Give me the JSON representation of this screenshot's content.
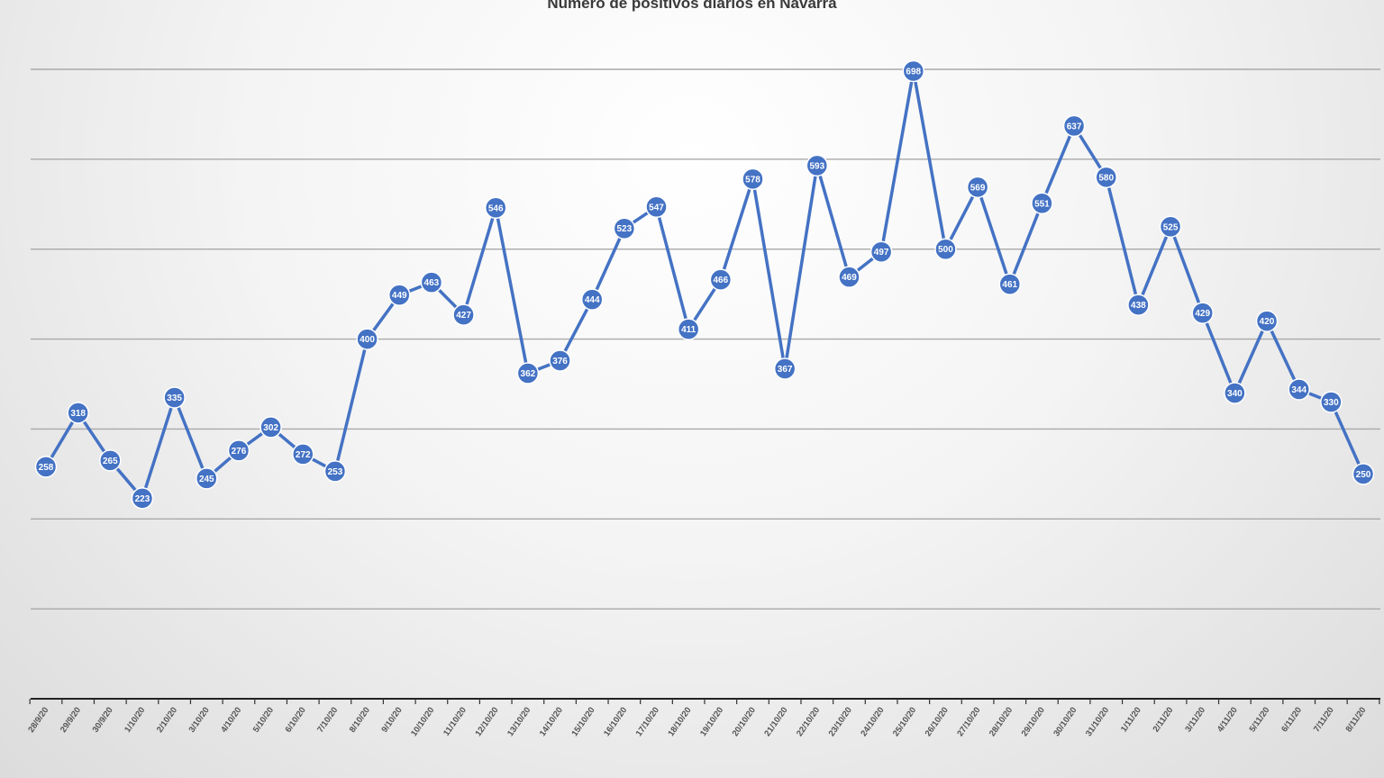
{
  "chart_data": {
    "type": "line",
    "title": "Número de positivos diarios en Navarra",
    "xlabel": "",
    "ylabel": "",
    "ylim": [
      0,
      700
    ],
    "grid": true,
    "legend": "none",
    "series_color": "#4472c4",
    "categories": [
      "28/9/20",
      "29/9/20",
      "30/9/20",
      "1/10/20",
      "2/10/20",
      "3/10/20",
      "4/10/20",
      "5/10/20",
      "6/10/20",
      "7/10/20",
      "8/10/20",
      "9/10/20",
      "10/10/20",
      "11/10/20",
      "12/10/20",
      "13/10/20",
      "14/10/20",
      "15/10/20",
      "16/10/20",
      "17/10/20",
      "18/10/20",
      "19/10/20",
      "20/10/20",
      "21/10/20",
      "22/10/20",
      "23/10/20",
      "24/10/20",
      "25/10/20",
      "26/10/20",
      "27/10/20",
      "28/10/20",
      "29/10/20",
      "30/10/20",
      "31/10/20",
      "1/11/20",
      "2/11/20",
      "3/11/20",
      "4/11/20",
      "5/11/20",
      "6/11/20",
      "7/11/20",
      "8/11/20"
    ],
    "series": [
      {
        "values": [
          258,
          318,
          265,
          223,
          335,
          245,
          276,
          302,
          272,
          253,
          400,
          449,
          463,
          427,
          546,
          362,
          376,
          444,
          523,
          547,
          411,
          466,
          578,
          367,
          593,
          469,
          497,
          698,
          500,
          569,
          461,
          551,
          637,
          580,
          438,
          525,
          429,
          340,
          420,
          344,
          330,
          250
        ]
      }
    ]
  }
}
